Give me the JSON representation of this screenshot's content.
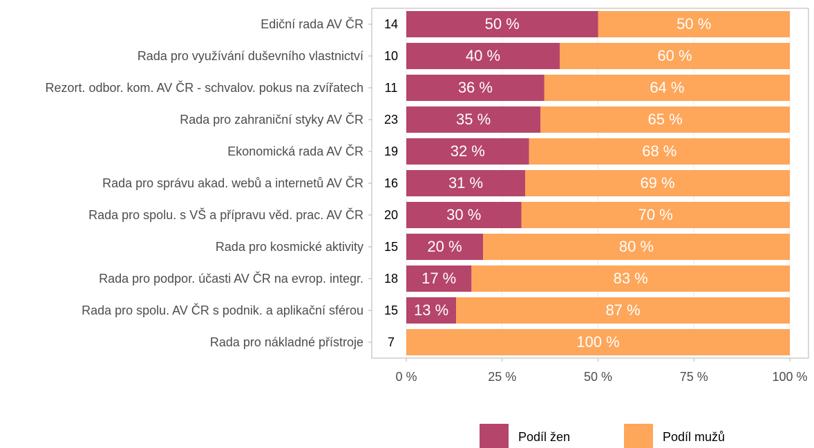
{
  "chart_data": {
    "type": "stacked_barh",
    "categories": [
      "Ediční rada AV ČR",
      "Rada pro využívání duševního vlastnictví",
      "Rezort. odbor. kom. AV ČR - schvalov. pokus na zvířatech",
      "Rada pro zahraniční styky AV ČR",
      "Ekonomická rada AV ČR",
      "Rada pro správu akad. webů a internetů AV ČR",
      "Rada pro spolu. s VŠ a přípravu věd. prac. AV ČR",
      "Rada pro kosmické aktivity",
      "Rada pro podpor. účasti AV ČR na evrop. integr.",
      "Rada pro spolu. AV ČR s podnik. a aplikační sférou",
      "Rada pro nákladné přístroje"
    ],
    "counts": [
      14,
      10,
      11,
      23,
      19,
      16,
      20,
      15,
      18,
      15,
      7
    ],
    "series": [
      {
        "name": "Podíl žen",
        "color": "#b5456b",
        "values": [
          50,
          40,
          36,
          35,
          32,
          31,
          30,
          20,
          17,
          13,
          0
        ],
        "value_labels": [
          "50 %",
          "40 %",
          "36 %",
          "35 %",
          "32 %",
          "31 %",
          "30 %",
          "20 %",
          "17 %",
          "13 %",
          null
        ]
      },
      {
        "name": "Podíl mužů",
        "color": "#fea65a",
        "values": [
          50,
          60,
          64,
          65,
          68,
          69,
          70,
          80,
          83,
          87,
          100
        ],
        "value_labels": [
          "50 %",
          "60 %",
          "64 %",
          "65 %",
          "68 %",
          "69 %",
          "70 %",
          "80 %",
          "83 %",
          "87 %",
          "100 %"
        ]
      }
    ],
    "xlim": [
      0,
      100
    ],
    "xticks": [
      {
        "value": 0,
        "label": "0 %"
      },
      {
        "value": 25,
        "label": "25 %"
      },
      {
        "value": 50,
        "label": "50 %"
      },
      {
        "value": 75,
        "label": "75 %"
      },
      {
        "value": 100,
        "label": "100 %"
      }
    ],
    "grid": true
  }
}
